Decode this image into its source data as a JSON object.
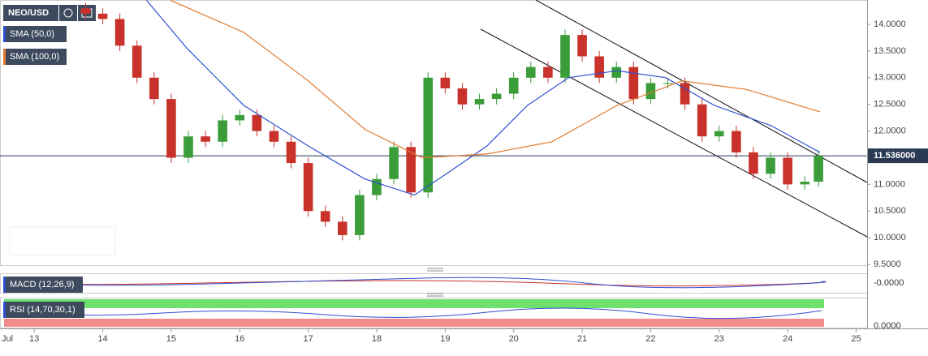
{
  "chart_data": {
    "type": "candlestick",
    "title": "NEO/USD",
    "x": [
      13.75,
      14,
      14.25,
      14.5,
      14.75,
      15,
      15.25,
      15.5,
      15.75,
      16,
      16.25,
      16.5,
      16.75,
      17,
      17.25,
      17.5,
      17.75,
      18,
      18.25,
      18.5,
      18.75,
      19,
      19.25,
      19.5,
      19.75,
      20,
      20.25,
      20.5,
      20.75,
      21,
      21.25,
      21.5,
      21.75,
      22,
      22.25,
      22.5,
      22.75,
      23,
      23.25,
      23.5,
      23.75,
      24,
      24.25,
      24.45
    ],
    "open": [
      14.3,
      14.2,
      14.1,
      13.6,
      13.0,
      12.6,
      11.5,
      11.9,
      11.8,
      12.2,
      12.3,
      12.0,
      11.8,
      11.4,
      10.5,
      10.3,
      10.05,
      10.8,
      11.1,
      11.7,
      10.85,
      13.0,
      12.8,
      12.5,
      12.6,
      12.7,
      13.0,
      13.2,
      13.0,
      13.8,
      13.4,
      13.0,
      13.2,
      12.6,
      12.9,
      12.9,
      12.5,
      11.9,
      12.0,
      11.6,
      11.2,
      11.5,
      11.0,
      11.05
    ],
    "high": [
      14.4,
      14.3,
      14.2,
      13.7,
      13.1,
      12.7,
      12.0,
      12.0,
      12.3,
      12.4,
      12.4,
      12.1,
      11.9,
      11.5,
      10.6,
      10.4,
      10.9,
      11.2,
      11.8,
      11.8,
      13.1,
      13.1,
      12.9,
      12.7,
      12.8,
      13.1,
      13.3,
      13.3,
      13.9,
      13.9,
      13.5,
      13.3,
      13.3,
      13.0,
      13.0,
      13.0,
      12.6,
      12.1,
      12.1,
      11.7,
      11.6,
      11.6,
      11.15,
      11.636
    ],
    "low": [
      14.1,
      14.0,
      13.5,
      12.9,
      12.5,
      11.4,
      11.4,
      11.7,
      11.7,
      12.1,
      11.9,
      11.7,
      11.3,
      10.4,
      10.2,
      9.95,
      9.95,
      10.7,
      11.0,
      10.75,
      10.75,
      12.7,
      12.4,
      12.4,
      12.5,
      12.6,
      12.9,
      12.9,
      12.9,
      13.3,
      12.9,
      12.9,
      12.5,
      12.5,
      12.8,
      12.4,
      11.8,
      11.8,
      11.5,
      11.1,
      11.1,
      10.9,
      10.9,
      10.95
    ],
    "close": [
      14.2,
      14.1,
      13.6,
      13.0,
      12.6,
      11.5,
      11.9,
      11.8,
      12.2,
      12.3,
      12.0,
      11.8,
      11.4,
      10.5,
      10.3,
      10.05,
      10.8,
      11.1,
      11.7,
      10.85,
      13.0,
      12.8,
      12.5,
      12.6,
      12.7,
      13.0,
      13.2,
      13.0,
      13.8,
      13.4,
      13.0,
      13.2,
      12.6,
      12.9,
      12.9,
      12.5,
      11.9,
      12.0,
      11.6,
      11.2,
      11.5,
      11.0,
      11.05,
      11.536
    ],
    "up_color": "#3a9d3a",
    "down_color": "#c8322a",
    "series": [
      {
        "name": "SMA (50,0)",
        "color": "#2f4fd0",
        "x": [
          14.64,
          15.23,
          16.06,
          17.0,
          17.83,
          18.55,
          19.02,
          19.61,
          20.2,
          20.8,
          21.51,
          22.22,
          22.93,
          23.76,
          24.47
        ],
        "values": [
          14.45,
          13.55,
          12.48,
          11.72,
          11.1,
          10.8,
          11.2,
          11.72,
          12.48,
          13.0,
          13.13,
          13.0,
          12.48,
          12.1,
          11.6
        ]
      },
      {
        "name": "SMA (100,0)",
        "color": "#e07a2e",
        "x": [
          14.99,
          16.06,
          17.0,
          17.83,
          18.66,
          19.61,
          20.56,
          21.51,
          22.46,
          23.4,
          24.47
        ],
        "values": [
          14.45,
          13.85,
          12.94,
          12.03,
          11.5,
          11.57,
          11.8,
          12.48,
          12.94,
          12.78,
          12.36
        ]
      }
    ],
    "xlim": [
      12.5,
      25.16
    ],
    "xticks": [
      13,
      14,
      15,
      16,
      17,
      18,
      19,
      20,
      21,
      22,
      23,
      24,
      25
    ],
    "month_label": "Jul",
    "ylim": [
      9.486,
      14.456
    ],
    "yticks": [
      {
        "value": 9.5,
        "label": "9.5000"
      },
      {
        "value": 10,
        "label": "10.0000"
      },
      {
        "value": 10.5,
        "label": "10.5000"
      },
      {
        "value": 11,
        "label": "11.0000"
      },
      {
        "value": 11.5,
        "label": "11.5000"
      },
      {
        "value": 12,
        "label": "12.0000"
      },
      {
        "value": 12.5,
        "label": "12.5000"
      },
      {
        "value": 13,
        "label": "13.0000"
      },
      {
        "value": 13.5,
        "label": "13.5000"
      },
      {
        "value": 14,
        "label": "14.0000"
      }
    ],
    "last_price": {
      "value": 11.536,
      "label": "11.536000"
    },
    "panes": [
      {
        "name": "MACD (12,26,9)",
        "axis_label": "-0.0000"
      },
      {
        "name": "RSI (14,70,30,1)",
        "axis_label": "0.0000"
      }
    ]
  }
}
